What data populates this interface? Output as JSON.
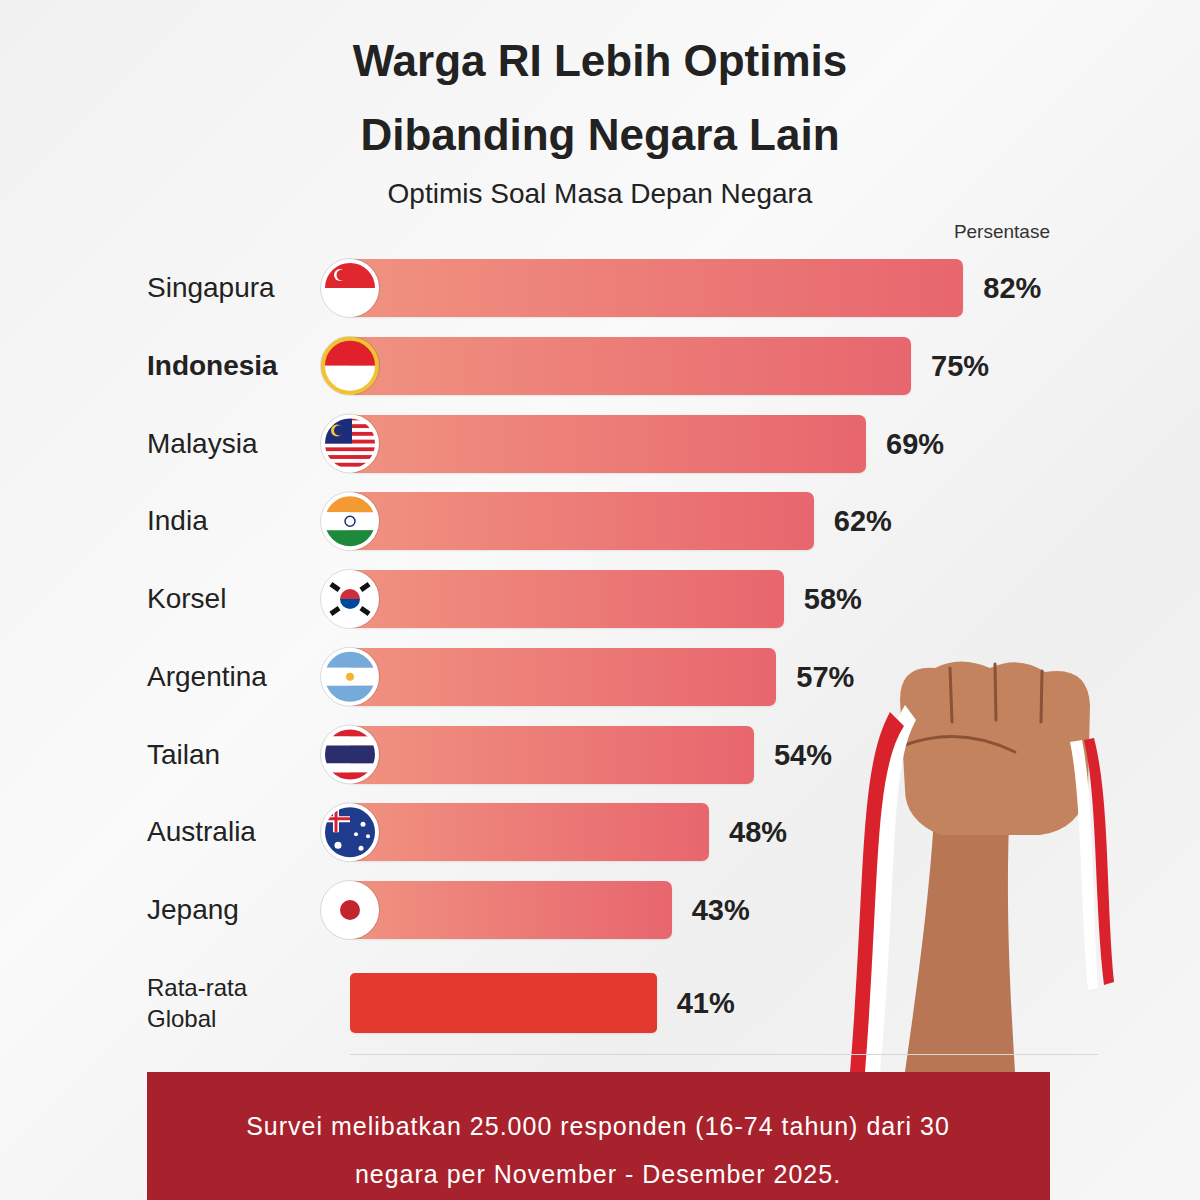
{
  "chart_data": {
    "type": "bar",
    "orientation": "horizontal",
    "title": "Warga RI Lebih Optimis Dibanding Negara Lain",
    "subtitle": "Optimis Soal Masa Depan Negara",
    "xlabel": "Persentase",
    "categories": [
      "Singapura",
      "Indonesia",
      "Malaysia",
      "India",
      "Korsel",
      "Argentina",
      "Tailan",
      "Australia",
      "Jepang",
      "Rata-rata Global"
    ],
    "values": [
      82,
      75,
      69,
      62,
      58,
      57,
      54,
      48,
      43,
      41
    ],
    "value_labels": [
      "82%",
      "75%",
      "69%",
      "62%",
      "58%",
      "57%",
      "54%",
      "48%",
      "43%",
      "41%"
    ],
    "colors": [
      "#e8666e",
      "#e8666e",
      "#e8666e",
      "#e8666e",
      "#e8666e",
      "#e8666e",
      "#e8666e",
      "#e8666e",
      "#e8666e",
      "#e23a2e"
    ],
    "xlim": [
      0,
      100
    ],
    "xticks": [],
    "tick_labels": false,
    "grid": false,
    "data_labels": true,
    "footnote": "Survei melibatkan 25.000 responden (16-74 tahun) dari 30 negara per November - Desember 2025."
  }
}
